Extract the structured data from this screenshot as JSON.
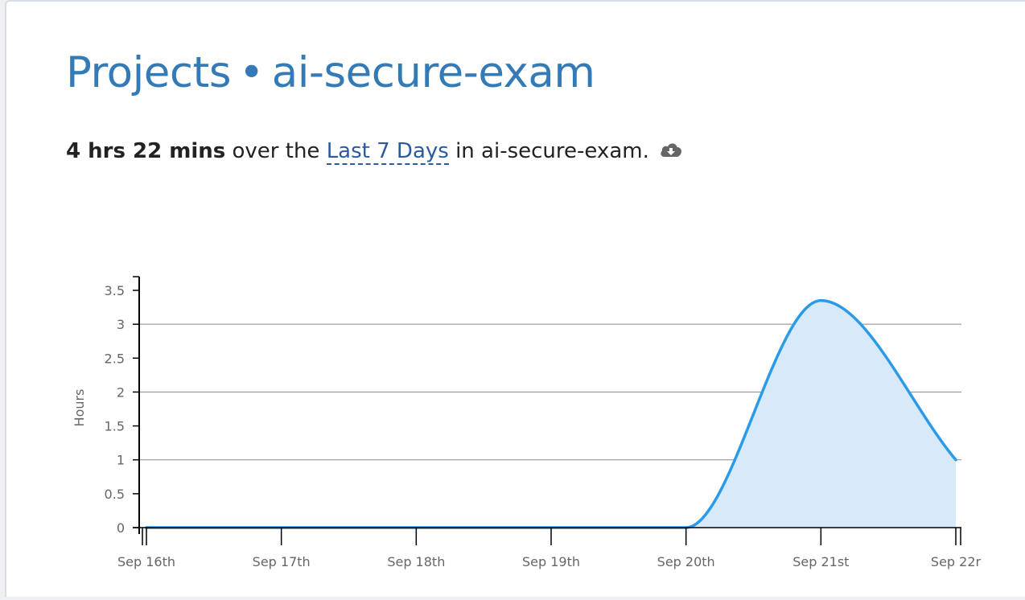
{
  "header": {
    "section": "Projects",
    "separator": "•",
    "project": "ai-secure-exam"
  },
  "summary": {
    "duration": "4 hrs 22 mins",
    "over_text": "over the",
    "range_link": "Last 7 Days",
    "in_text": "in ai-secure-exam.",
    "download_icon": "cloud-download-icon"
  },
  "colors": {
    "title": "#337ab7",
    "line": "#2b9be8",
    "fill": "#d8e9fa",
    "grid": "#888888",
    "axis": "#000000"
  },
  "chart_data": {
    "type": "area",
    "ylabel": "Hours",
    "ylim": [
      0,
      3.5
    ],
    "yticks": [
      "0",
      "0.5",
      "1",
      "1.5",
      "2",
      "2.5",
      "3",
      "3.5"
    ],
    "gridlines": [
      1,
      2,
      3
    ],
    "categories": [
      "Sep 16th",
      "Sep 17th",
      "Sep 18th",
      "Sep 19th",
      "Sep 20th",
      "Sep 21st",
      "Sep 22r"
    ],
    "series": [
      {
        "values": [
          0,
          0,
          0,
          0,
          0,
          3.35,
          1.0
        ]
      }
    ]
  }
}
